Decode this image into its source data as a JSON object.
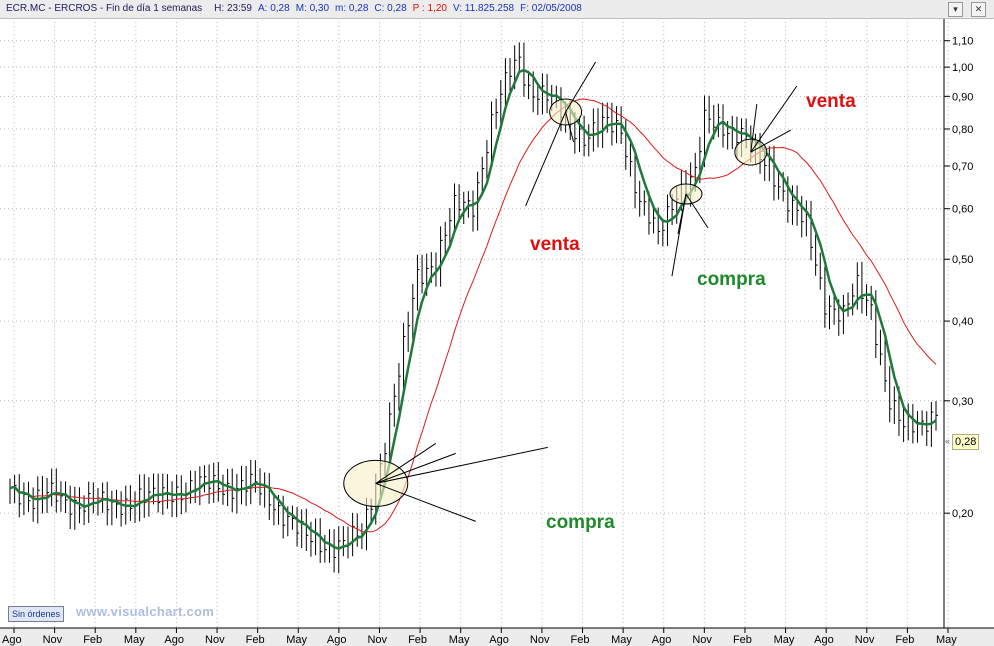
{
  "titlebar": {
    "symbol": "ECR.MC - ERCROS - Fin de día 1 semanas",
    "high": "H: 23:59",
    "a": "A: 0,28",
    "m": "M: 0,30",
    "low": "m: 0,28",
    "close": "C: 0,28",
    "pct": "P : 1,20",
    "volume": "V: 11.825.258",
    "date": "F: 02/05/2008"
  },
  "window_buttons": [
    "▾",
    "✕"
  ],
  "status": {
    "orders_label": "Sin órdenes"
  },
  "watermark": "www.visualchart.com",
  "last_price_tag": "0,28",
  "colors": {
    "price_bars": "#000000",
    "fast_ma": "#1e7a3a",
    "slow_ma": "#e01a1a",
    "venta": "#e01010",
    "compra": "#1e8a2a",
    "circle_fill": "#f6f0c8"
  },
  "chart_data": {
    "type": "line",
    "title": "",
    "xlabel": "",
    "ylabel": "",
    "yscale": "log",
    "ylim": [
      0.14,
      1.16
    ],
    "y_ticks": [
      {
        "v": 1.1,
        "label": "1,10"
      },
      {
        "v": 1.0,
        "label": "1,00"
      },
      {
        "v": 0.9,
        "label": "0,90"
      },
      {
        "v": 0.8,
        "label": "0,80"
      },
      {
        "v": 0.7,
        "label": "0,70"
      },
      {
        "v": 0.6,
        "label": "0,60"
      },
      {
        "v": 0.5,
        "label": "0,50"
      },
      {
        "v": 0.4,
        "label": "0,40"
      },
      {
        "v": 0.3,
        "label": "0,30"
      },
      {
        "v": 0.2,
        "label": "0,20"
      }
    ],
    "x_ticks": [
      "Ago",
      "Nov",
      "Feb",
      "May",
      "Ago",
      "Nov",
      "Feb",
      "May",
      "Ago",
      "Nov",
      "Feb",
      "May",
      "Ago",
      "Nov",
      "Feb",
      "May",
      "Ago",
      "Nov",
      "Feb",
      "May",
      "Ago",
      "Nov",
      "Feb",
      "May"
    ],
    "weeks": 200,
    "close_anchors": [
      [
        0,
        0.215
      ],
      [
        4,
        0.212
      ],
      [
        8,
        0.216
      ],
      [
        12,
        0.205
      ],
      [
        18,
        0.212
      ],
      [
        22,
        0.202
      ],
      [
        28,
        0.214
      ],
      [
        32,
        0.21
      ],
      [
        36,
        0.217
      ],
      [
        40,
        0.222
      ],
      [
        46,
        0.22
      ],
      [
        52,
        0.222
      ],
      [
        56,
        0.21
      ],
      [
        60,
        0.198
      ],
      [
        64,
        0.182
      ],
      [
        68,
        0.178
      ],
      [
        72,
        0.18
      ],
      [
        76,
        0.184
      ],
      [
        80,
        0.24
      ],
      [
        84,
        0.33
      ],
      [
        88,
        0.47
      ],
      [
        92,
        0.5
      ],
      [
        96,
        0.6
      ],
      [
        100,
        0.61
      ],
      [
        104,
        0.82
      ],
      [
        108,
        0.98
      ],
      [
        110,
        1.03
      ],
      [
        112,
        0.93
      ],
      [
        116,
        0.9
      ],
      [
        120,
        0.83
      ],
      [
        124,
        0.78
      ],
      [
        128,
        0.81
      ],
      [
        132,
        0.8
      ],
      [
        136,
        0.62
      ],
      [
        140,
        0.54
      ],
      [
        144,
        0.64
      ],
      [
        148,
        0.68
      ],
      [
        150,
        0.82
      ],
      [
        154,
        0.81
      ],
      [
        158,
        0.79
      ],
      [
        161,
        0.72
      ],
      [
        164,
        0.7
      ],
      [
        168,
        0.62
      ],
      [
        172,
        0.56
      ],
      [
        176,
        0.43
      ],
      [
        180,
        0.41
      ],
      [
        183,
        0.45
      ],
      [
        186,
        0.42
      ],
      [
        190,
        0.3
      ],
      [
        193,
        0.27
      ],
      [
        196,
        0.275
      ],
      [
        200,
        0.29
      ]
    ],
    "fast_ma_period": 5,
    "slow_ma_period": 21,
    "last_value": 0.28,
    "annotations": [
      {
        "text": "venta",
        "color": "red",
        "target_week": 120
      },
      {
        "text": "compra",
        "color": "green",
        "target_week": 146
      },
      {
        "text": "venta",
        "color": "red",
        "target_week": 160
      },
      {
        "text": "compra",
        "color": "green",
        "target_week": 79
      }
    ]
  }
}
